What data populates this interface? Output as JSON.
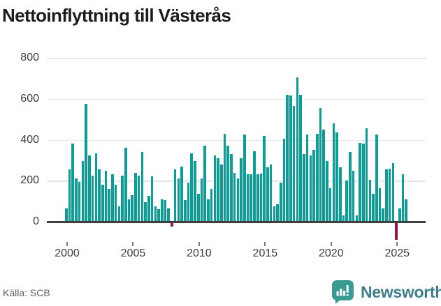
{
  "title": "Nettoinflyttning till Västerås",
  "source": "Källa: SCB",
  "logo": {
    "text": "Newsworthy",
    "icon": "speech-bubble-bar-chart-icon"
  },
  "colors": {
    "bar_positive": "#0a9e96",
    "bar_negative": "#9b1246",
    "grid": "#e7e7e7",
    "zero_line": "#3f3f3f",
    "axis_text": "#3d3d3d",
    "logo_teal": "#399a93",
    "logo_text": "#3e7d8b"
  },
  "chart_data": {
    "type": "bar",
    "title": "Nettoinflyttning till Västerås",
    "xlabel": "",
    "ylabel": "",
    "interval": "quarter",
    "period_start": "2000-Q1",
    "period_end": "2025-Q4",
    "x_ticks": [
      2000,
      2005,
      2010,
      2015,
      2020,
      2025
    ],
    "y_ticks": [
      0,
      200,
      400,
      600,
      800
    ],
    "ylim": [
      -100,
      850
    ],
    "grid": "horizontal",
    "legend": "none",
    "values": [
      65,
      255,
      380,
      210,
      195,
      295,
      575,
      325,
      225,
      335,
      255,
      180,
      250,
      160,
      230,
      180,
      75,
      225,
      360,
      110,
      130,
      240,
      225,
      340,
      95,
      125,
      220,
      75,
      60,
      110,
      105,
      65,
      -20,
      255,
      210,
      270,
      105,
      190,
      335,
      295,
      135,
      210,
      370,
      110,
      160,
      325,
      310,
      280,
      430,
      370,
      330,
      240,
      210,
      310,
      425,
      230,
      230,
      345,
      230,
      235,
      420,
      265,
      280,
      75,
      85,
      190,
      405,
      620,
      615,
      565,
      705,
      620,
      330,
      425,
      325,
      350,
      430,
      555,
      450,
      295,
      165,
      480,
      435,
      265,
      30,
      200,
      340,
      250,
      30,
      385,
      380,
      455,
      205,
      135,
      425,
      165,
      65,
      255,
      260,
      285,
      -85,
      65,
      230,
      110
    ]
  }
}
